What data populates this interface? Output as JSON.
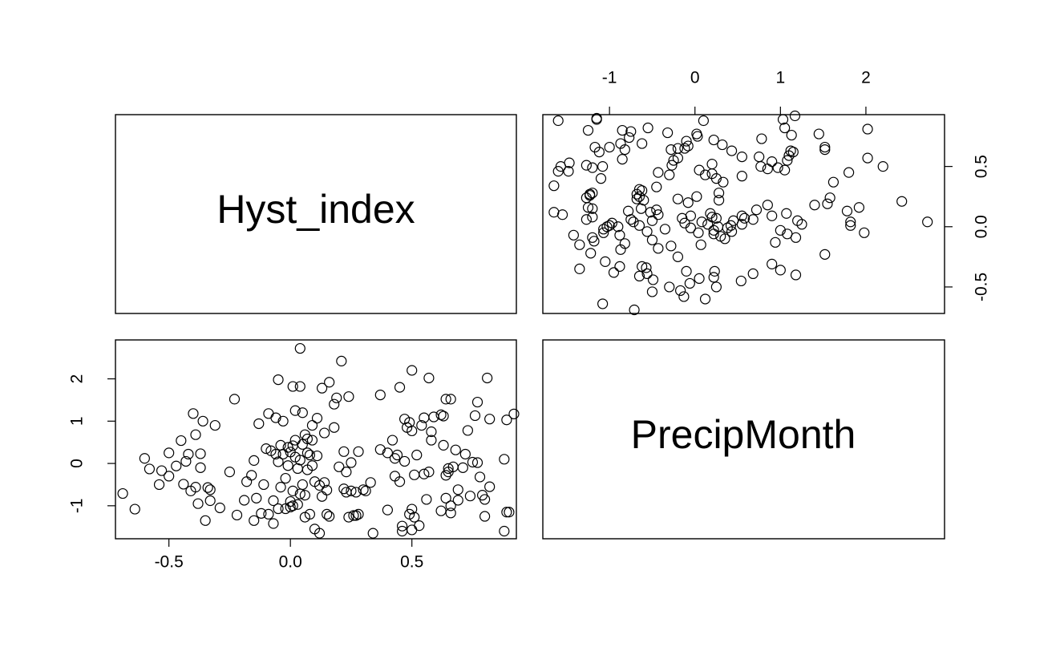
{
  "chart_data": {
    "type": "scatter",
    "kind": "pairs",
    "variables": [
      "Hyst_index",
      "PrecipMonth"
    ],
    "axes": {
      "Hyst_index": {
        "range": [
          -0.72,
          0.93
        ],
        "ticks": [
          -0.5,
          0.0,
          0.5
        ],
        "tick_labels": [
          "-0.5",
          "0.0",
          "0.5"
        ]
      },
      "PrecipMonth": {
        "range": [
          -1.78,
          2.92
        ],
        "ticks": [
          -1,
          0,
          1,
          2
        ],
        "tick_labels": [
          "-1",
          "0",
          "1",
          "2"
        ]
      }
    },
    "grid": false,
    "legend": "none",
    "points": [
      [
        -0.69,
        -0.71
      ],
      [
        -0.64,
        -1.08
      ],
      [
        -0.6,
        0.12
      ],
      [
        -0.58,
        -0.13
      ],
      [
        -0.54,
        -0.5
      ],
      [
        -0.53,
        -0.17
      ],
      [
        -0.5,
        -0.3
      ],
      [
        -0.5,
        0.25
      ],
      [
        -0.47,
        -0.06
      ],
      [
        -0.45,
        0.54
      ],
      [
        -0.44,
        -0.49
      ],
      [
        -0.43,
        0.05
      ],
      [
        -0.42,
        0.22
      ],
      [
        -0.41,
        -0.65
      ],
      [
        -0.4,
        1.18
      ],
      [
        -0.39,
        0.68
      ],
      [
        -0.39,
        -0.56
      ],
      [
        -0.38,
        -0.95
      ],
      [
        -0.37,
        -0.1
      ],
      [
        -0.37,
        0.23
      ],
      [
        -0.36,
        1.0
      ],
      [
        -0.35,
        -1.35
      ],
      [
        -0.34,
        -0.57
      ],
      [
        -0.33,
        -0.88
      ],
      [
        -0.33,
        -0.62
      ],
      [
        -0.31,
        0.9
      ],
      [
        -0.29,
        -1.05
      ],
      [
        -0.25,
        -0.2
      ],
      [
        -0.23,
        1.52
      ],
      [
        -0.22,
        -1.22
      ],
      [
        -0.19,
        -0.87
      ],
      [
        -0.18,
        -0.43
      ],
      [
        -0.16,
        -0.28
      ],
      [
        -0.15,
        -1.35
      ],
      [
        -0.15,
        0.07
      ],
      [
        -0.14,
        -0.82
      ],
      [
        -0.13,
        0.94
      ],
      [
        -0.12,
        -1.18
      ],
      [
        -0.11,
        -0.5
      ],
      [
        -0.1,
        0.35
      ],
      [
        -0.09,
        1.18
      ],
      [
        -0.09,
        -1.2
      ],
      [
        -0.08,
        0.3
      ],
      [
        -0.07,
        -1.42
      ],
      [
        -0.07,
        -0.88
      ],
      [
        -0.06,
        0.22
      ],
      [
        -0.06,
        1.08
      ],
      [
        -0.05,
        0.04
      ],
      [
        -0.05,
        1.98
      ],
      [
        -0.05,
        -1.07
      ],
      [
        -0.04,
        0.43
      ],
      [
        -0.04,
        -0.56
      ],
      [
        -0.03,
        1.0
      ],
      [
        -0.03,
        0.22
      ],
      [
        -0.02,
        -0.35
      ],
      [
        -0.02,
        -1.07
      ],
      [
        -0.01,
        -0.05
      ],
      [
        -0.01,
        0.38
      ],
      [
        0.0,
        -1.03
      ],
      [
        0.0,
        0.27
      ],
      [
        0.0,
        -0.9
      ],
      [
        0.01,
        -1.0
      ],
      [
        0.01,
        0.42
      ],
      [
        0.01,
        -0.65
      ],
      [
        0.01,
        1.82
      ],
      [
        0.02,
        0.55
      ],
      [
        0.02,
        0.15
      ],
      [
        0.02,
        1.25
      ],
      [
        0.03,
        -0.97
      ],
      [
        0.03,
        -0.12
      ],
      [
        0.04,
        0.08
      ],
      [
        0.04,
        1.82
      ],
      [
        0.04,
        -0.72
      ],
      [
        0.04,
        2.72
      ],
      [
        0.05,
        0.45
      ],
      [
        0.05,
        -0.5
      ],
      [
        0.05,
        1.2
      ],
      [
        0.06,
        0.68
      ],
      [
        0.06,
        -1.27
      ],
      [
        0.06,
        -0.75
      ],
      [
        0.07,
        0.25
      ],
      [
        0.07,
        0.58
      ],
      [
        0.07,
        -0.15
      ],
      [
        0.08,
        -1.2
      ],
      [
        0.08,
        0.2
      ],
      [
        0.09,
        0.55
      ],
      [
        0.09,
        0.9
      ],
      [
        0.09,
        -0.05
      ],
      [
        0.1,
        -1.55
      ],
      [
        0.1,
        -0.43
      ],
      [
        0.11,
        0.18
      ],
      [
        0.11,
        1.07
      ],
      [
        0.12,
        -0.52
      ],
      [
        0.12,
        -1.65
      ],
      [
        0.13,
        -0.78
      ],
      [
        0.13,
        1.78
      ],
      [
        0.14,
        0.72
      ],
      [
        0.14,
        -0.45
      ],
      [
        0.15,
        -1.2
      ],
      [
        0.15,
        -0.63
      ],
      [
        0.16,
        1.92
      ],
      [
        0.16,
        -1.25
      ],
      [
        0.18,
        1.4
      ],
      [
        0.18,
        0.85
      ],
      [
        0.19,
        1.55
      ],
      [
        0.2,
        -0.08
      ],
      [
        0.21,
        2.42
      ],
      [
        0.22,
        -0.6
      ],
      [
        0.22,
        0.28
      ],
      [
        0.23,
        -0.68
      ],
      [
        0.23,
        -0.2
      ],
      [
        0.24,
        -1.27
      ],
      [
        0.24,
        1.58
      ],
      [
        0.25,
        0.02
      ],
      [
        0.25,
        -0.65
      ],
      [
        0.26,
        -1.23
      ],
      [
        0.27,
        -1.23
      ],
      [
        0.27,
        -0.68
      ],
      [
        0.28,
        -1.2
      ],
      [
        0.28,
        0.28
      ],
      [
        0.3,
        -0.62
      ],
      [
        0.31,
        -0.65
      ],
      [
        0.33,
        -0.45
      ],
      [
        0.34,
        -1.65
      ],
      [
        0.37,
        0.33
      ],
      [
        0.37,
        1.62
      ],
      [
        0.4,
        -1.1
      ],
      [
        0.4,
        0.25
      ],
      [
        0.42,
        0.55
      ],
      [
        0.43,
        0.12
      ],
      [
        0.43,
        -0.3
      ],
      [
        0.44,
        0.2
      ],
      [
        0.45,
        -0.43
      ],
      [
        0.45,
        1.8
      ],
      [
        0.46,
        -1.48
      ],
      [
        0.46,
        -1.6
      ],
      [
        0.47,
        0.05
      ],
      [
        0.47,
        1.05
      ],
      [
        0.48,
        0.85
      ],
      [
        0.49,
        -1.2
      ],
      [
        0.49,
        0.97
      ],
      [
        0.5,
        -1.57
      ],
      [
        0.5,
        -1.08
      ],
      [
        0.5,
        2.2
      ],
      [
        0.5,
        0.77
      ],
      [
        0.51,
        -0.27
      ],
      [
        0.51,
        -1.27
      ],
      [
        0.52,
        0.2
      ],
      [
        0.53,
        -1.47
      ],
      [
        0.54,
        0.9
      ],
      [
        0.55,
        -0.25
      ],
      [
        0.55,
        1.08
      ],
      [
        0.56,
        -0.85
      ],
      [
        0.57,
        -0.2
      ],
      [
        0.57,
        2.02
      ],
      [
        0.58,
        0.55
      ],
      [
        0.58,
        0.75
      ],
      [
        0.59,
        1.1
      ],
      [
        0.62,
        1.15
      ],
      [
        0.62,
        -1.12
      ],
      [
        0.63,
        0.43
      ],
      [
        0.63,
        1.12
      ],
      [
        0.64,
        -0.82
      ],
      [
        0.64,
        -0.28
      ],
      [
        0.64,
        1.52
      ],
      [
        0.65,
        -0.2
      ],
      [
        0.65,
        -0.12
      ],
      [
        0.66,
        -1.17
      ],
      [
        0.66,
        -1.0
      ],
      [
        0.66,
        1.52
      ],
      [
        0.67,
        -0.08
      ],
      [
        0.68,
        0.32
      ],
      [
        0.69,
        -0.87
      ],
      [
        0.69,
        -0.62
      ],
      [
        0.71,
        -0.1
      ],
      [
        0.72,
        0.22
      ],
      [
        0.73,
        0.78
      ],
      [
        0.74,
        -0.77
      ],
      [
        0.75,
        0.03
      ],
      [
        0.76,
        1.13
      ],
      [
        0.77,
        1.45
      ],
      [
        0.77,
        0.02
      ],
      [
        0.78,
        -0.32
      ],
      [
        0.79,
        -0.75
      ],
      [
        0.8,
        -0.85
      ],
      [
        0.8,
        -1.25
      ],
      [
        0.81,
        2.02
      ],
      [
        0.82,
        -0.55
      ],
      [
        0.82,
        1.05
      ],
      [
        0.88,
        0.1
      ],
      [
        0.88,
        -1.6
      ],
      [
        0.89,
        1.03
      ],
      [
        0.89,
        -1.15
      ],
      [
        0.9,
        -1.15
      ],
      [
        0.92,
        1.17
      ]
    ]
  }
}
